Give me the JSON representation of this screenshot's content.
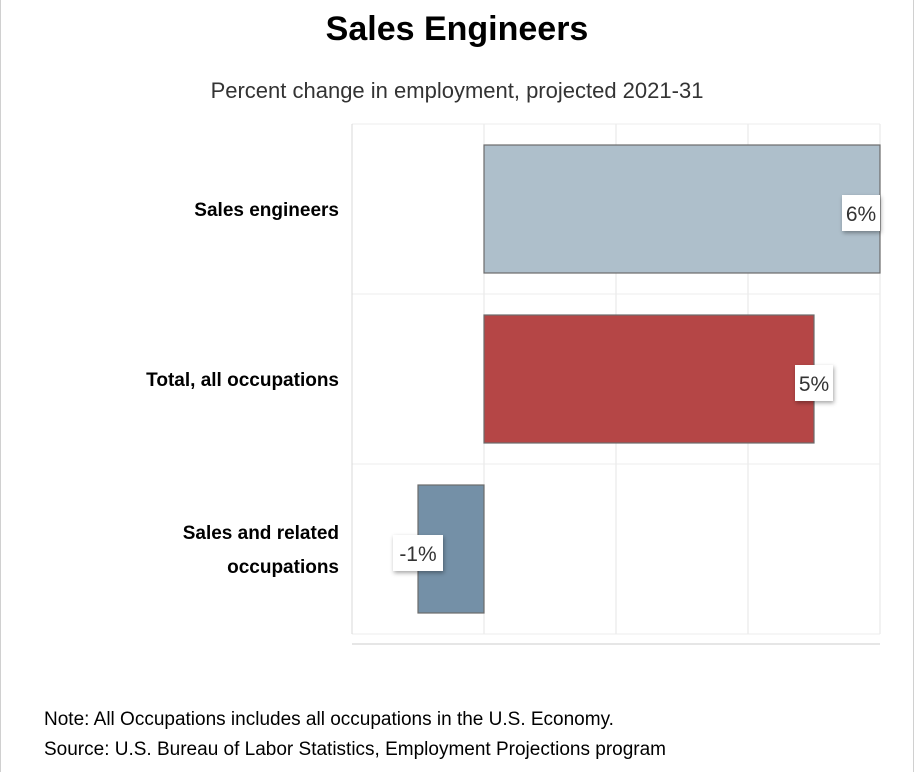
{
  "chart_data": {
    "type": "bar",
    "orientation": "horizontal",
    "title": "Sales Engineers",
    "subtitle": "Percent change in employment, projected 2021-31",
    "categories": [
      [
        "Sales engineers"
      ],
      [
        "Total, all occupations"
      ],
      [
        "Sales and related",
        "occupations"
      ]
    ],
    "values": [
      6,
      5,
      -1
    ],
    "data_labels": [
      "6%",
      "5%",
      "-1%"
    ],
    "colors": [
      "#aebfcb",
      "#b54646",
      "#7490a7"
    ],
    "xlim": [
      -2,
      6
    ],
    "grid": true,
    "legend": "none"
  },
  "notes": {
    "note": "Note: All Occupations includes all occupations in the U.S. Economy.",
    "source": "Source: U.S. Bureau of Labor Statistics, Employment Projections program"
  }
}
